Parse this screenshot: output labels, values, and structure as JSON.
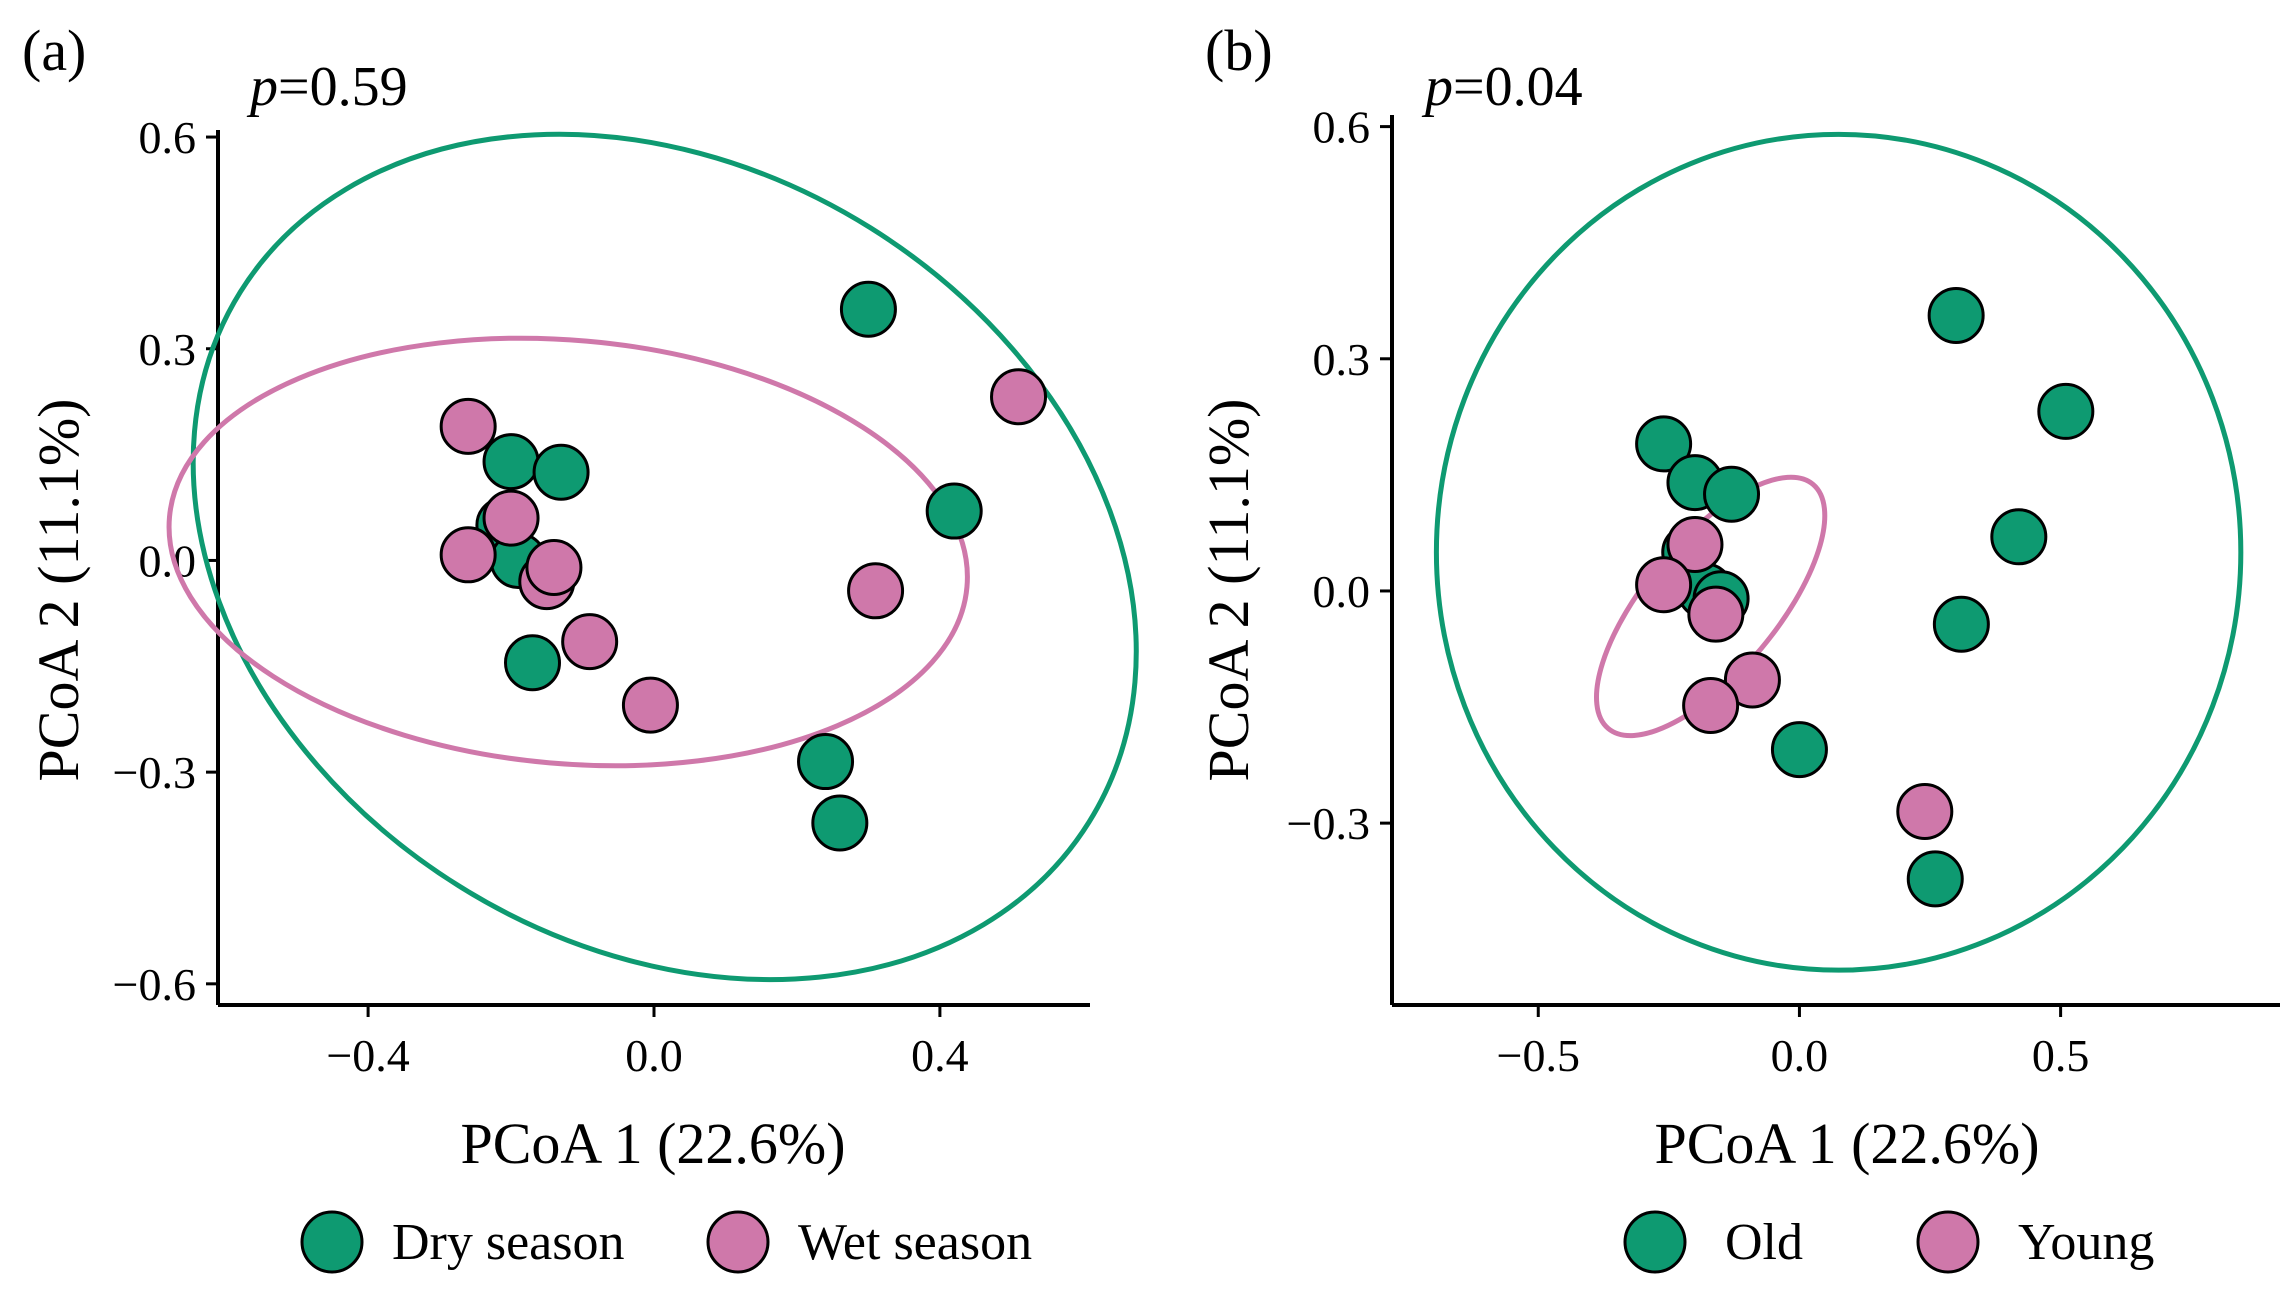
{
  "colors": {
    "dry": "#0e9a71",
    "wet": "#cf78aa",
    "old": "#0e9a71",
    "young": "#cf78aa",
    "axis": "#000000",
    "point_outline": "#000000"
  },
  "chart_data": [
    {
      "type": "scatter",
      "panel_label": "(a)",
      "p_label": "p",
      "p_value": "=0.59",
      "xlabel": "PCoA 1 (22.6%)",
      "ylabel": "PCoA 2 (11.1%)",
      "xlim": [
        -0.61,
        0.61
      ],
      "ylim": [
        -0.63,
        0.61
      ],
      "xticks": [
        -0.4,
        0.0,
        0.4
      ],
      "xtick_labels": [
        "−0.4",
        "0.0",
        "0.4"
      ],
      "yticks": [
        -0.6,
        -0.3,
        0.0,
        0.3,
        0.6
      ],
      "ytick_labels": [
        "−0.6",
        "−0.3",
        "0.0",
        "0.3",
        "0.6"
      ],
      "legend": {
        "position": "bottom",
        "entries": [
          "Dry season",
          "Wet season"
        ]
      },
      "series": [
        {
          "name": "Dry season",
          "color_key": "dry",
          "points": [
            [
              0.3,
              0.356
            ],
            [
              0.42,
              0.07
            ],
            [
              0.24,
              -0.285
            ],
            [
              0.26,
              -0.372
            ],
            [
              -0.2,
              0.14
            ],
            [
              -0.13,
              0.125
            ],
            [
              -0.21,
              0.05
            ],
            [
              -0.19,
              0.0
            ],
            [
              -0.17,
              -0.145
            ]
          ],
          "ellipse": {
            "cx": 0.015,
            "cy": 0.005,
            "rx": 0.7,
            "ry": 0.55,
            "angle_deg": -32
          }
        },
        {
          "name": "Wet season",
          "color_key": "wet",
          "points": [
            [
              0.51,
              0.232
            ],
            [
              0.31,
              -0.043
            ],
            [
              -0.26,
              0.19
            ],
            [
              -0.2,
              0.06
            ],
            [
              -0.26,
              0.008
            ],
            [
              -0.15,
              -0.03
            ],
            [
              -0.14,
              -0.01
            ],
            [
              -0.09,
              -0.115
            ],
            [
              -0.005,
              -0.205
            ]
          ],
          "ellipse": {
            "cx": -0.12,
            "cy": 0.012,
            "rx": 0.56,
            "ry": 0.3,
            "angle_deg": -5
          }
        }
      ]
    },
    {
      "type": "scatter",
      "panel_label": "(b)",
      "p_label": "p",
      "p_value": "=0.04",
      "xlabel": "PCoA 1 (22.6%)",
      "ylabel": "PCoA 2 (11.1%)",
      "xlim": [
        -0.78,
        0.92
      ],
      "ylim": [
        -0.535,
        0.615
      ],
      "xticks": [
        -0.5,
        0.0,
        0.5
      ],
      "xtick_labels": [
        "−0.5",
        "0.0",
        "0.5"
      ],
      "yticks": [
        -0.3,
        0.0,
        0.3,
        0.6
      ],
      "ytick_labels": [
        "−0.3",
        "0.0",
        "0.3",
        "0.6"
      ],
      "legend": {
        "position": "bottom",
        "entries": [
          "Old",
          "Young"
        ]
      },
      "series": [
        {
          "name": "Old",
          "color_key": "old",
          "points": [
            [
              0.3,
              0.356
            ],
            [
              0.51,
              0.232
            ],
            [
              0.42,
              0.07
            ],
            [
              0.31,
              -0.043
            ],
            [
              -0.26,
              0.19
            ],
            [
              -0.2,
              0.14
            ],
            [
              -0.13,
              0.125
            ],
            [
              -0.21,
              0.05
            ],
            [
              -0.18,
              0.0
            ],
            [
              -0.15,
              -0.01
            ],
            [
              0.0,
              -0.205
            ],
            [
              0.26,
              -0.372
            ]
          ],
          "ellipse": {
            "cx": 0.075,
            "cy": 0.05,
            "rx": 0.77,
            "ry": 0.54,
            "angle_deg": 0
          }
        },
        {
          "name": "Young",
          "color_key": "young",
          "points": [
            [
              -0.2,
              0.06
            ],
            [
              -0.26,
              0.008
            ],
            [
              -0.16,
              -0.03
            ],
            [
              -0.09,
              -0.115
            ],
            [
              -0.17,
              -0.148
            ],
            [
              0.24,
              -0.285
            ]
          ],
          "ellipse": {
            "cx": -0.17,
            "cy": -0.02,
            "rx": 0.305,
            "ry": 0.085,
            "angle_deg": 50
          }
        }
      ]
    }
  ]
}
